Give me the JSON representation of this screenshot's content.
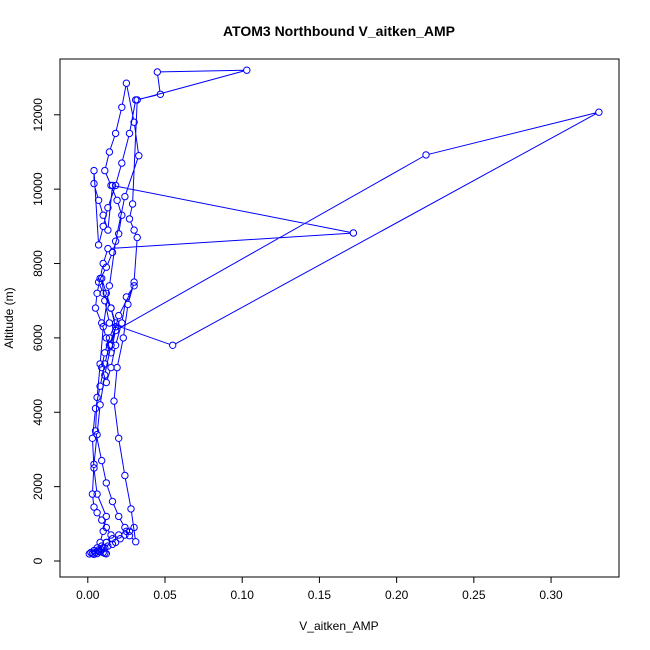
{
  "chart_data": {
    "type": "line",
    "title": "ATOM3 Northbound V_aitken_AMP",
    "xlabel": "V_aitken_AMP",
    "ylabel": "Altitude (m)",
    "xlim": [
      -0.018,
      0.344
    ],
    "ylim": [
      -430,
      13500
    ],
    "xticks": [
      0.0,
      0.05,
      0.1,
      0.15,
      0.2,
      0.25,
      0.3
    ],
    "xtick_labels": [
      "0.00",
      "0.05",
      "0.10",
      "0.15",
      "0.20",
      "0.25",
      "0.30"
    ],
    "yticks": [
      0,
      2000,
      4000,
      6000,
      8000,
      10000,
      12000
    ],
    "ytick_labels": [
      "0",
      "2000",
      "4000",
      "6000",
      "8000",
      "10000",
      "12000"
    ],
    "grid": false,
    "legend": "none",
    "series": [
      {
        "name": "",
        "color": "#0000ff",
        "marker": "open-circle",
        "x": [
          0.001,
          0.002,
          0.004,
          0.006,
          0.008,
          0.01,
          0.012,
          0.006,
          0.004,
          0.003,
          0.005,
          0.008,
          0.011,
          0.014,
          0.018,
          0.015,
          0.01,
          0.007,
          0.012,
          0.016,
          0.02,
          0.022,
          0.019,
          0.015,
          0.011,
          0.014,
          0.018,
          0.022,
          0.025,
          0.03,
          0.033,
          0.024,
          0.018,
          0.014,
          0.01,
          0.008,
          0.006,
          0.005,
          0.009,
          0.012,
          0.016,
          0.02,
          0.024,
          0.027,
          0.031,
          0.028,
          0.024,
          0.02,
          0.017,
          0.019,
          0.023,
          0.026,
          0.03,
          0.032,
          0.03,
          0.027,
          0.029,
          0.032,
          0.103,
          0.045,
          0.047,
          0.031,
          0.027,
          0.022,
          0.018,
          0.013,
          0.01,
          0.007,
          0.004,
          0.004,
          0.007,
          0.01,
          0.013,
          0.016,
          0.172,
          0.013,
          0.01,
          0.008,
          0.006,
          0.005,
          0.009,
          0.012,
          0.015,
          0.018,
          0.219,
          0.331,
          0.055,
          0.014,
          0.011,
          0.009,
          0.012,
          0.015,
          0.018,
          0.014,
          0.011,
          0.009,
          0.012,
          0.015,
          0.018,
          0.022,
          0.025,
          0.03,
          0.02,
          0.015,
          0.011,
          0.008,
          0.006,
          0.004,
          0.003,
          0.004,
          0.006,
          0.009,
          0.012,
          0.015,
          0.012,
          0.01,
          0.008,
          0.006,
          0.004,
          0.003,
          0.005,
          0.007,
          0.009,
          0.011,
          0.013,
          0.016,
          0.018,
          0.021,
          0.024,
          0.027,
          0.03,
          0.025,
          0.02,
          0.016,
          0.012,
          0.009,
          0.007,
          0.008,
          0.01,
          0.011,
          0.012
        ],
        "y": [
          190,
          230,
          280,
          350,
          500,
          800,
          1200,
          1800,
          2500,
          3300,
          4100,
          4700,
          5300,
          5800,
          6300,
          6800,
          7200,
          7500,
          7900,
          8300,
          8800,
          9300,
          9700,
          10100,
          10500,
          11000,
          11500,
          12200,
          12850,
          11800,
          10900,
          9800,
          8600,
          7400,
          6300,
          5300,
          4400,
          3500,
          2700,
          2100,
          1600,
          1200,
          900,
          680,
          520,
          1400,
          2300,
          3300,
          4300,
          5200,
          6000,
          6900,
          7500,
          8700,
          8900,
          9200,
          9600,
          12400,
          13200,
          13150,
          12550,
          12400,
          11500,
          10700,
          10100,
          9500,
          9000,
          8500,
          10500,
          10150,
          9700,
          9300,
          8900,
          10100,
          8820,
          8400,
          8000,
          7600,
          7200,
          6800,
          6400,
          6000,
          5600,
          6200,
          10920,
          12070,
          5800,
          6400,
          7000,
          7600,
          7200,
          6800,
          6400,
          6000,
          5600,
          5200,
          4800,
          5200,
          5800,
          6400,
          7100,
          7400,
          6600,
          5800,
          5000,
          4200,
          3400,
          2600,
          1800,
          1450,
          1300,
          1100,
          900,
          700,
          500,
          350,
          250,
          200,
          180,
          200,
          230,
          260,
          300,
          350,
          400,
          450,
          500,
          600,
          700,
          800,
          900,
          800,
          700,
          600,
          500,
          400,
          300,
          250,
          230,
          210,
          195
        ]
      }
    ]
  }
}
